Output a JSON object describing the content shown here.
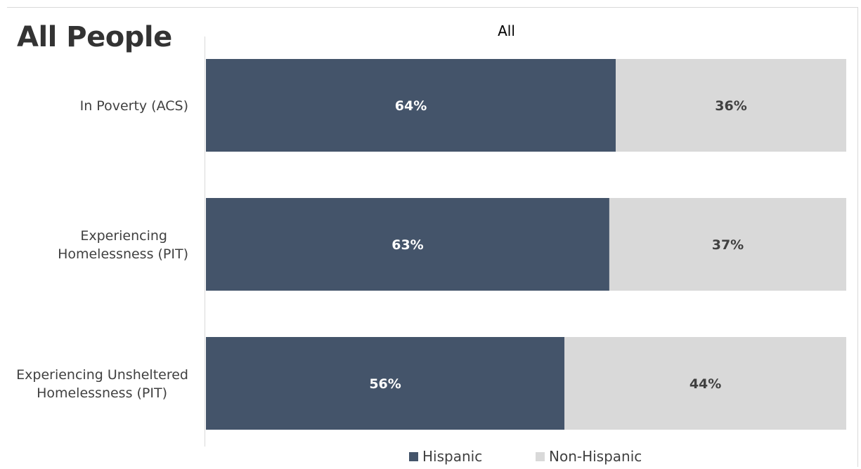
{
  "title": "All People",
  "chart_data": {
    "type": "bar",
    "orientation": "horizontal",
    "stacked": "100%",
    "title": "All",
    "categories": [
      "In Poverty (ACS)",
      "Experiencing Homelessness (PIT)",
      "Experiencing Unsheltered Homelessness (PIT)"
    ],
    "category_lines": [
      [
        "In Poverty (ACS)"
      ],
      [
        "Experiencing",
        "Homelessness (PIT)"
      ],
      [
        "Experiencing Unsheltered",
        "Homelessness (PIT)"
      ]
    ],
    "series": [
      {
        "name": "Hispanic",
        "values": [
          64,
          63,
          56
        ],
        "labels": [
          "64%",
          "63%",
          "56%"
        ],
        "color": "#44546a"
      },
      {
        "name": "Non-Hispanic",
        "values": [
          36,
          37,
          44
        ],
        "labels": [
          "36%",
          "37%",
          "44%"
        ],
        "color": "#d9d9d9"
      }
    ],
    "xlim": [
      0,
      100
    ],
    "grid": false,
    "legend_position": "bottom"
  },
  "colors": {
    "hispanic": "#44546a",
    "non_hispanic": "#d9d9d9",
    "label_on_dark": "#ffffff",
    "label_on_light": "#404040",
    "axis_line": "#d9d9d9",
    "text": "#404040"
  }
}
